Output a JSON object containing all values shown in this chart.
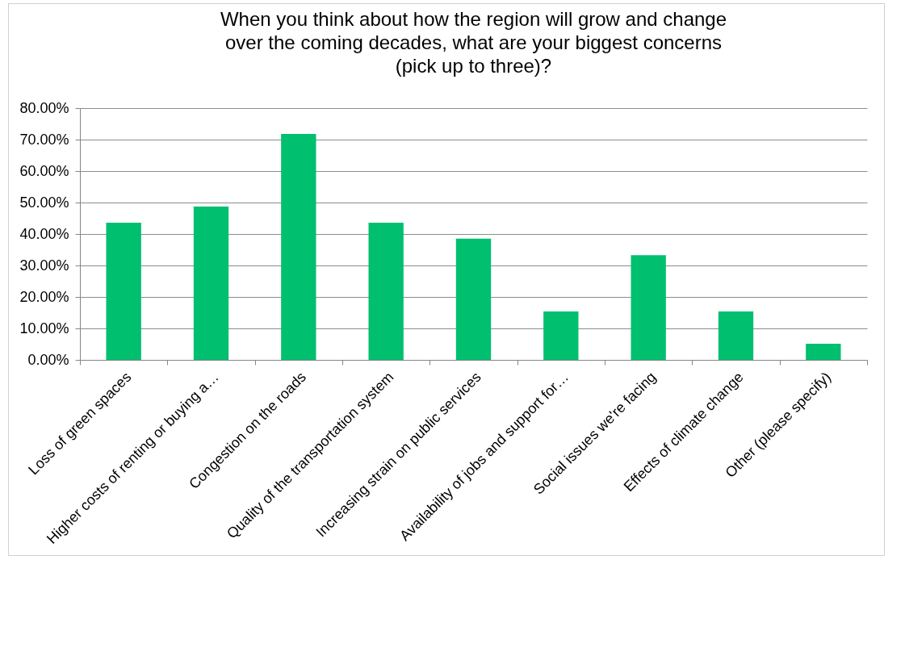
{
  "chart_data": {
    "type": "bar",
    "title": "When you think about how the region will grow and change over the coming decades, what are your biggest concerns (pick up to three)?",
    "categories": [
      "Loss of green spaces",
      "Higher costs of renting or buying a…",
      "Congestion on the roads",
      "Quality of the transportation system",
      "Increasing strain on public services",
      "Availability of jobs and support for…",
      "Social issues we're facing",
      "Effects of climate change",
      "Other (please specify)"
    ],
    "values": [
      43.6,
      48.7,
      71.8,
      43.6,
      38.5,
      15.4,
      33.3,
      15.4,
      5.1
    ],
    "color": "#00bf6f",
    "ylim": [
      0,
      80
    ],
    "yticks": [
      {
        "value": 0,
        "label": "0.00%"
      },
      {
        "value": 10,
        "label": "10.00%"
      },
      {
        "value": 20,
        "label": "20.00%"
      },
      {
        "value": 30,
        "label": "30.00%"
      },
      {
        "value": 40,
        "label": "40.00%"
      },
      {
        "value": 50,
        "label": "50.00%"
      },
      {
        "value": 60,
        "label": "60.00%"
      },
      {
        "value": 70,
        "label": "70.00%"
      },
      {
        "value": 80,
        "label": "80.00%"
      }
    ],
    "grid": "y"
  }
}
